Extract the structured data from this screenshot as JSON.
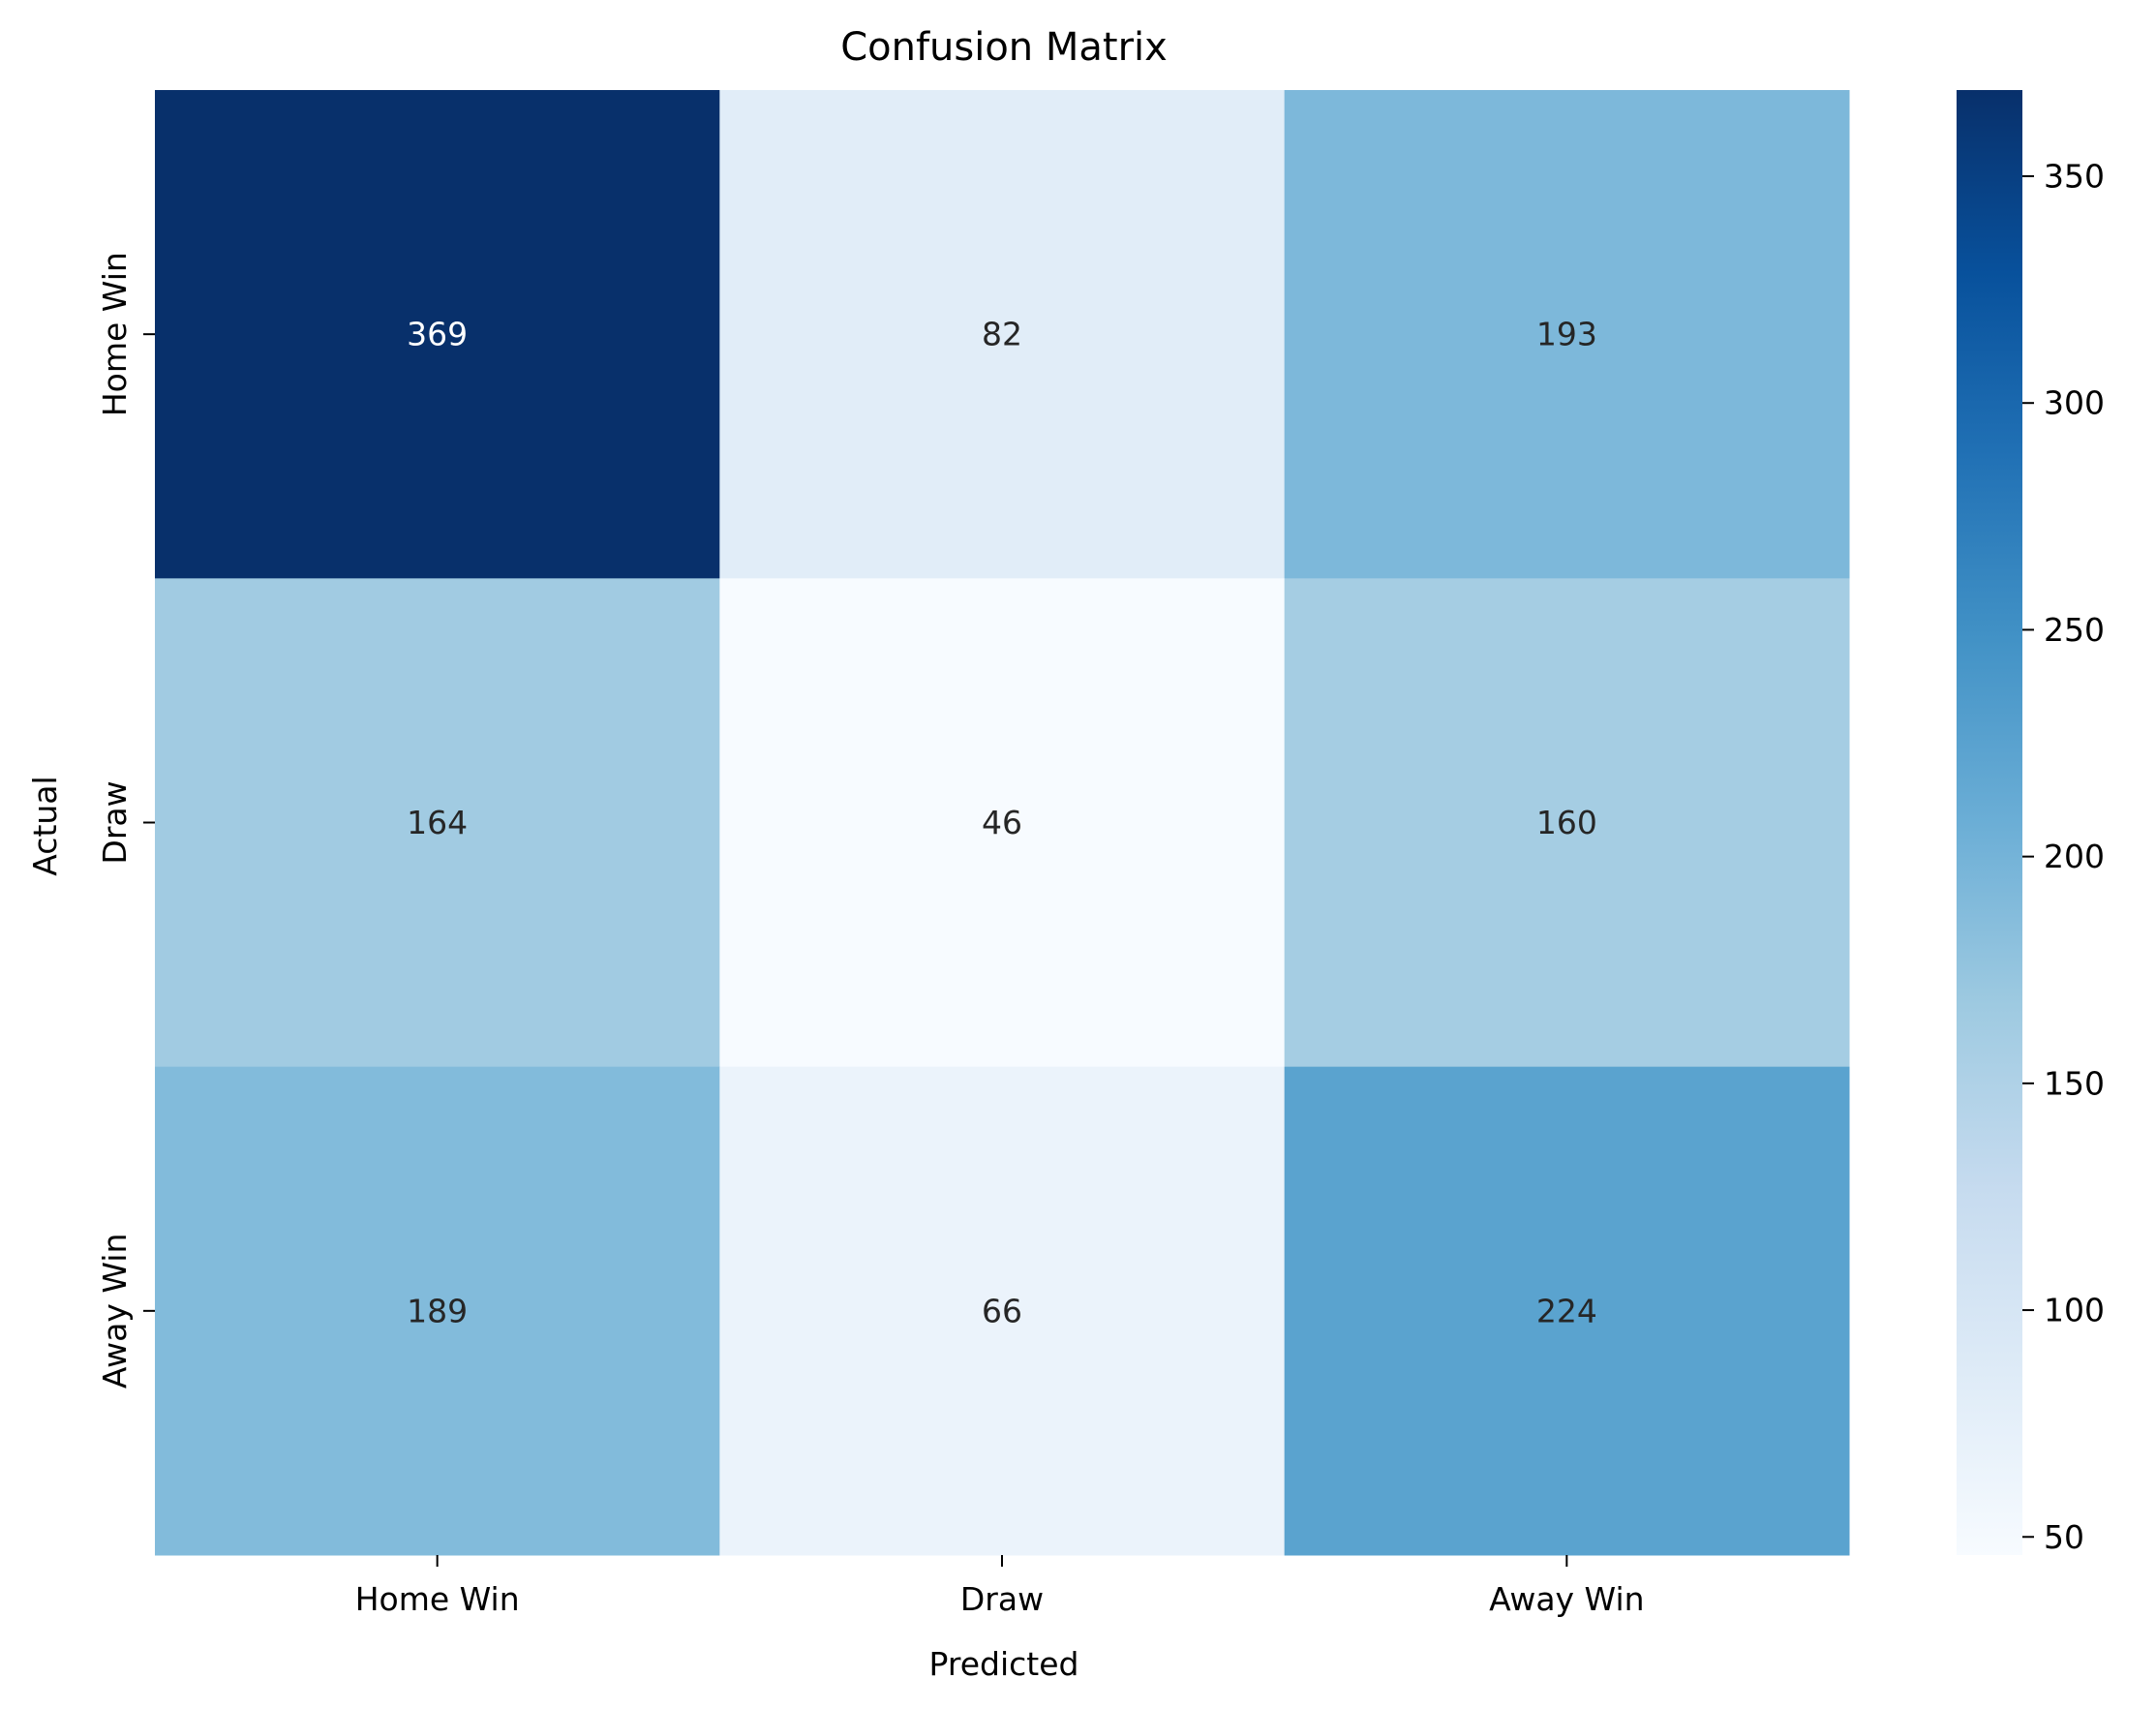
{
  "chart_data": {
    "type": "heatmap",
    "title": "Confusion Matrix",
    "xlabel": "Predicted",
    "ylabel": "Actual",
    "x_categories": [
      "Home Win",
      "Draw",
      "Away Win"
    ],
    "y_categories": [
      "Home Win",
      "Draw",
      "Away Win"
    ],
    "values": [
      [
        369,
        82,
        193
      ],
      [
        164,
        46,
        160
      ],
      [
        189,
        66,
        224
      ]
    ],
    "colormap": "Blues",
    "color_range": [
      46,
      369
    ],
    "colorbar_ticks": [
      50,
      100,
      150,
      200,
      250,
      300,
      350
    ],
    "colors": {
      "cmap_stops": [
        "#f7fbff",
        "#deebf7",
        "#c6dbef",
        "#9ecae1",
        "#6baed6",
        "#4292c6",
        "#2171b5",
        "#08519c",
        "#08306b"
      ],
      "text_dark": "#262626",
      "text_light": "#ffffff",
      "axis": "#000000"
    }
  }
}
